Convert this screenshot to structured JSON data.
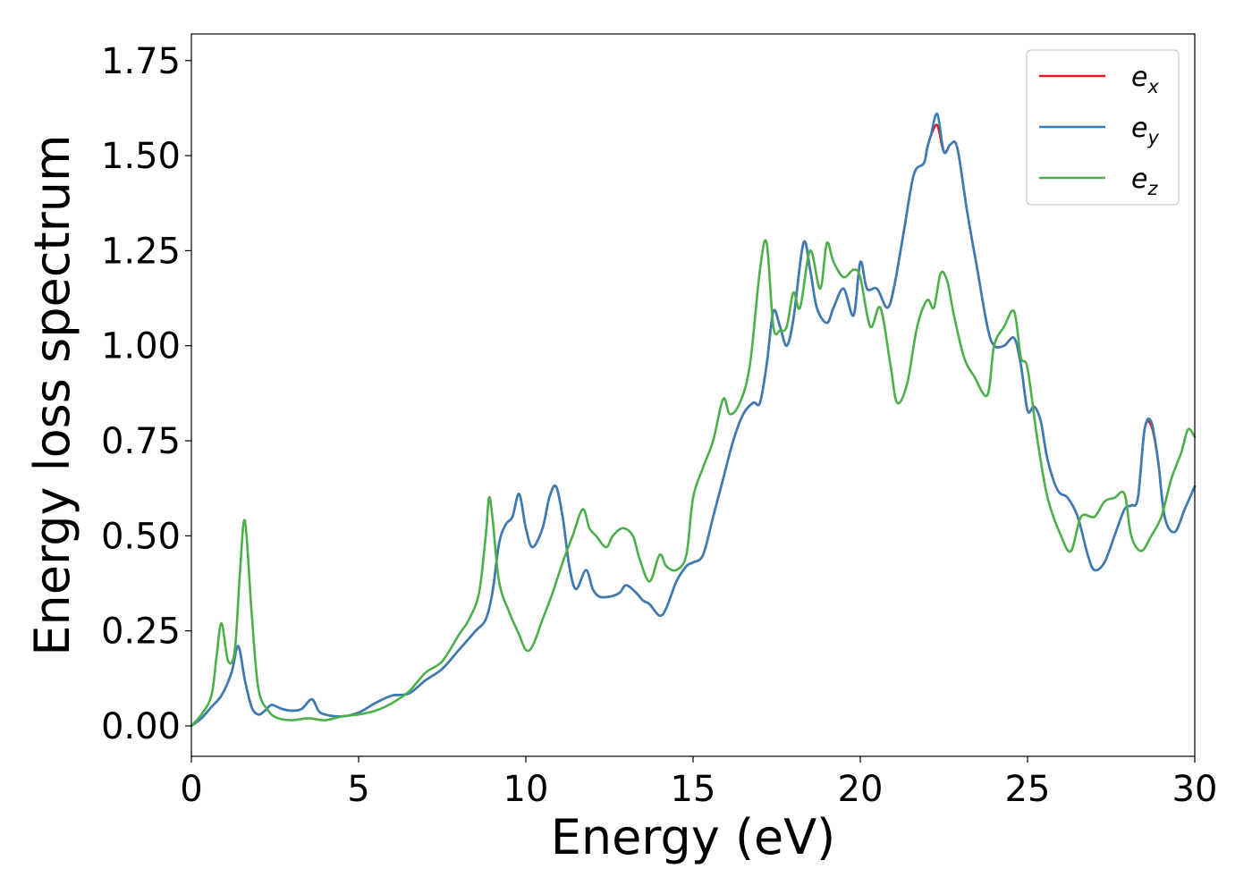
{
  "chart_data": {
    "type": "line",
    "title": "",
    "xlabel": "Energy (eV)",
    "ylabel": "Energy loss spectrum",
    "xlim": [
      0,
      30
    ],
    "ylim": [
      -0.08,
      1.82
    ],
    "xticks": [
      0,
      5,
      10,
      15,
      20,
      25,
      30
    ],
    "xtick_labels": [
      "0",
      "5",
      "10",
      "15",
      "20",
      "25",
      "30"
    ],
    "yticks": [
      0.0,
      0.25,
      0.5,
      0.75,
      1.0,
      1.25,
      1.5,
      1.75
    ],
    "ytick_labels": [
      "0.00",
      "0.25",
      "0.50",
      "0.75",
      "1.00",
      "1.25",
      "1.50",
      "1.75"
    ],
    "grid": false,
    "legend_position": "top-right",
    "series": [
      {
        "name": "e_x",
        "label_base": "e",
        "label_sub": "x",
        "color": "#e41a1c",
        "x": [
          0,
          0.3,
          0.6,
          0.9,
          1.2,
          1.4,
          1.6,
          1.8,
          2.0,
          2.2,
          2.4,
          2.7,
          3.0,
          3.3,
          3.6,
          3.8,
          4.0,
          4.5,
          5.0,
          5.5,
          6.0,
          6.5,
          7.0,
          7.5,
          8.0,
          8.5,
          8.8,
          9.0,
          9.2,
          9.4,
          9.6,
          9.8,
          10.0,
          10.2,
          10.5,
          10.7,
          10.9,
          11.1,
          11.3,
          11.5,
          11.8,
          12.0,
          12.2,
          12.5,
          12.8,
          13.0,
          13.3,
          13.5,
          13.7,
          14.0,
          14.2,
          14.5,
          14.8,
          15.0,
          15.3,
          15.6,
          15.9,
          16.2,
          16.5,
          16.8,
          17.0,
          17.2,
          17.4,
          17.6,
          17.8,
          18.0,
          18.3,
          18.5,
          18.7,
          19.0,
          19.2,
          19.5,
          19.8,
          20.0,
          20.2,
          20.5,
          20.8,
          21.0,
          21.3,
          21.6,
          21.9,
          22.0,
          22.1,
          22.3,
          22.5,
          22.7,
          22.9,
          23.2,
          23.5,
          23.8,
          24.0,
          24.3,
          24.6,
          24.8,
          25.0,
          25.2,
          25.4,
          25.6,
          25.9,
          26.2,
          26.5,
          26.8,
          27.0,
          27.3,
          27.6,
          27.9,
          28.1,
          28.3,
          28.5,
          28.7,
          28.9,
          29.1,
          29.4,
          29.7,
          30.0
        ],
        "y": [
          0.0,
          0.02,
          0.05,
          0.08,
          0.14,
          0.21,
          0.12,
          0.05,
          0.03,
          0.04,
          0.055,
          0.045,
          0.04,
          0.045,
          0.07,
          0.04,
          0.03,
          0.025,
          0.035,
          0.06,
          0.08,
          0.085,
          0.12,
          0.15,
          0.2,
          0.25,
          0.28,
          0.35,
          0.48,
          0.53,
          0.55,
          0.61,
          0.52,
          0.47,
          0.52,
          0.6,
          0.63,
          0.55,
          0.42,
          0.36,
          0.41,
          0.36,
          0.34,
          0.34,
          0.35,
          0.37,
          0.35,
          0.33,
          0.32,
          0.29,
          0.31,
          0.38,
          0.42,
          0.43,
          0.45,
          0.55,
          0.65,
          0.75,
          0.82,
          0.85,
          0.85,
          0.95,
          1.09,
          1.05,
          1.0,
          1.07,
          1.27,
          1.2,
          1.1,
          1.06,
          1.1,
          1.15,
          1.08,
          1.22,
          1.15,
          1.15,
          1.1,
          1.15,
          1.3,
          1.45,
          1.48,
          1.52,
          1.55,
          1.58,
          1.51,
          1.53,
          1.52,
          1.35,
          1.2,
          1.05,
          1.0,
          1.0,
          1.02,
          0.95,
          0.83,
          0.84,
          0.8,
          0.7,
          0.62,
          0.6,
          0.55,
          0.45,
          0.41,
          0.43,
          0.5,
          0.57,
          0.58,
          0.6,
          0.78,
          0.79,
          0.7,
          0.55,
          0.51,
          0.57,
          0.63
        ]
      },
      {
        "name": "e_y",
        "label_base": "e",
        "label_sub": "y",
        "color": "#377eb8",
        "x": [
          0,
          0.3,
          0.6,
          0.9,
          1.2,
          1.4,
          1.6,
          1.8,
          2.0,
          2.2,
          2.4,
          2.7,
          3.0,
          3.3,
          3.6,
          3.8,
          4.0,
          4.5,
          5.0,
          5.5,
          6.0,
          6.5,
          7.0,
          7.5,
          8.0,
          8.5,
          8.8,
          9.0,
          9.2,
          9.4,
          9.6,
          9.8,
          10.0,
          10.2,
          10.5,
          10.7,
          10.9,
          11.1,
          11.3,
          11.5,
          11.8,
          12.0,
          12.2,
          12.5,
          12.8,
          13.0,
          13.3,
          13.5,
          13.7,
          14.0,
          14.2,
          14.5,
          14.8,
          15.0,
          15.3,
          15.6,
          15.9,
          16.2,
          16.5,
          16.8,
          17.0,
          17.2,
          17.4,
          17.6,
          17.8,
          18.0,
          18.3,
          18.5,
          18.7,
          19.0,
          19.2,
          19.5,
          19.8,
          20.0,
          20.2,
          20.5,
          20.8,
          21.0,
          21.3,
          21.6,
          21.9,
          22.0,
          22.1,
          22.3,
          22.5,
          22.7,
          22.9,
          23.2,
          23.5,
          23.8,
          24.0,
          24.3,
          24.6,
          24.8,
          25.0,
          25.2,
          25.4,
          25.6,
          25.9,
          26.2,
          26.5,
          26.8,
          27.0,
          27.3,
          27.6,
          27.9,
          28.1,
          28.3,
          28.5,
          28.7,
          28.9,
          29.1,
          29.4,
          29.7,
          30.0
        ],
        "y": [
          0.0,
          0.02,
          0.05,
          0.08,
          0.14,
          0.21,
          0.12,
          0.05,
          0.03,
          0.04,
          0.055,
          0.045,
          0.04,
          0.045,
          0.07,
          0.04,
          0.03,
          0.025,
          0.035,
          0.06,
          0.08,
          0.085,
          0.12,
          0.15,
          0.2,
          0.25,
          0.28,
          0.35,
          0.48,
          0.53,
          0.55,
          0.61,
          0.52,
          0.47,
          0.52,
          0.6,
          0.63,
          0.55,
          0.42,
          0.36,
          0.41,
          0.36,
          0.34,
          0.34,
          0.35,
          0.37,
          0.35,
          0.33,
          0.32,
          0.29,
          0.31,
          0.38,
          0.42,
          0.43,
          0.45,
          0.55,
          0.65,
          0.75,
          0.82,
          0.85,
          0.85,
          0.95,
          1.09,
          1.05,
          1.0,
          1.07,
          1.27,
          1.2,
          1.1,
          1.06,
          1.1,
          1.15,
          1.08,
          1.22,
          1.15,
          1.15,
          1.1,
          1.15,
          1.3,
          1.45,
          1.48,
          1.52,
          1.55,
          1.61,
          1.51,
          1.53,
          1.52,
          1.35,
          1.2,
          1.05,
          1.0,
          1.0,
          1.02,
          0.95,
          0.83,
          0.84,
          0.8,
          0.7,
          0.62,
          0.6,
          0.55,
          0.45,
          0.41,
          0.43,
          0.5,
          0.57,
          0.58,
          0.6,
          0.78,
          0.8,
          0.7,
          0.55,
          0.51,
          0.57,
          0.63
        ]
      },
      {
        "name": "e_z",
        "label_base": "e",
        "label_sub": "z",
        "color": "#4daf4a",
        "x": [
          0,
          0.3,
          0.6,
          0.75,
          0.9,
          1.1,
          1.3,
          1.45,
          1.6,
          1.8,
          2.0,
          2.3,
          2.6,
          3.0,
          3.5,
          4.0,
          4.5,
          5.0,
          5.5,
          6.0,
          6.5,
          7.0,
          7.5,
          8.0,
          8.3,
          8.6,
          8.8,
          8.9,
          9.0,
          9.2,
          9.5,
          9.8,
          10.0,
          10.2,
          10.5,
          10.8,
          11.1,
          11.4,
          11.7,
          11.9,
          12.1,
          12.4,
          12.6,
          12.9,
          13.2,
          13.4,
          13.7,
          14.0,
          14.2,
          14.5,
          14.8,
          15.0,
          15.3,
          15.6,
          15.9,
          16.1,
          16.4,
          16.7,
          17.0,
          17.2,
          17.4,
          17.6,
          17.8,
          18.0,
          18.2,
          18.5,
          18.8,
          19.0,
          19.2,
          19.5,
          19.8,
          20.0,
          20.3,
          20.6,
          20.9,
          21.1,
          21.4,
          21.7,
          22.0,
          22.2,
          22.4,
          22.6,
          22.8,
          23.1,
          23.4,
          23.8,
          24.0,
          24.3,
          24.6,
          24.8,
          25.0,
          25.3,
          25.6,
          26.0,
          26.3,
          26.6,
          27.0,
          27.3,
          27.6,
          27.9,
          28.1,
          28.4,
          28.7,
          29.0,
          29.3,
          29.6,
          29.8,
          30.0
        ],
        "y": [
          0.0,
          0.03,
          0.08,
          0.18,
          0.27,
          0.17,
          0.2,
          0.4,
          0.54,
          0.3,
          0.1,
          0.04,
          0.02,
          0.015,
          0.02,
          0.015,
          0.025,
          0.03,
          0.04,
          0.06,
          0.09,
          0.14,
          0.17,
          0.24,
          0.28,
          0.35,
          0.5,
          0.6,
          0.55,
          0.38,
          0.3,
          0.24,
          0.2,
          0.21,
          0.28,
          0.35,
          0.43,
          0.5,
          0.57,
          0.52,
          0.5,
          0.47,
          0.5,
          0.52,
          0.5,
          0.44,
          0.38,
          0.45,
          0.42,
          0.41,
          0.45,
          0.6,
          0.68,
          0.75,
          0.86,
          0.82,
          0.85,
          0.95,
          1.2,
          1.27,
          1.05,
          1.04,
          1.05,
          1.14,
          1.1,
          1.25,
          1.15,
          1.27,
          1.22,
          1.18,
          1.2,
          1.18,
          1.05,
          1.1,
          0.95,
          0.85,
          0.9,
          1.05,
          1.12,
          1.1,
          1.19,
          1.17,
          1.08,
          0.97,
          0.92,
          0.87,
          1.0,
          1.05,
          1.09,
          0.97,
          0.94,
          0.75,
          0.6,
          0.5,
          0.46,
          0.55,
          0.55,
          0.59,
          0.6,
          0.61,
          0.5,
          0.46,
          0.5,
          0.55,
          0.65,
          0.72,
          0.78,
          0.76
        ]
      }
    ]
  }
}
